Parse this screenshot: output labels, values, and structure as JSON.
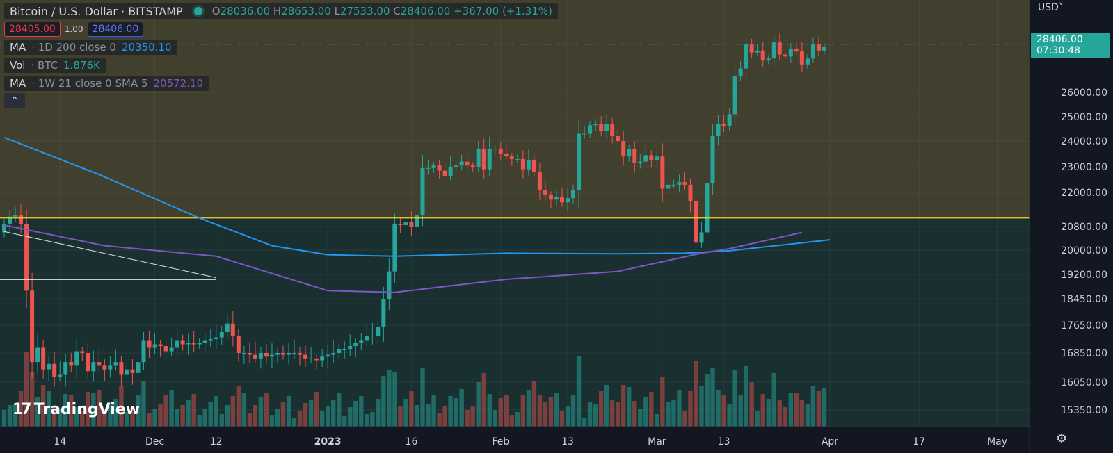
{
  "header": {
    "symbol": "Bitcoin / U.S. Dollar · BITSTAMP",
    "ohlc": {
      "o_label": "O",
      "o": "28036.00",
      "h_label": "H",
      "h": "28653.00",
      "l_label": "L",
      "l": "27533.00",
      "c_label": "C",
      "c": "28406.00",
      "change": "+367.00 (+1.31%)"
    },
    "bid": "28405.00",
    "spread": "1.00",
    "ask": "28406.00"
  },
  "indicators": [
    {
      "name": "MA",
      "params": "· 1D 200 close 0",
      "value": "20350.10",
      "color": "#2196f3"
    },
    {
      "name": "Vol",
      "params": "· BTC",
      "value": "1.876K",
      "color": "#26a69a"
    },
    {
      "name": "MA",
      "params": "· 1W 21 close 0 SMA 5",
      "value": "20572.10",
      "color": "#7e57c2"
    }
  ],
  "collapse_glyph": "⌃",
  "currency": "USD˅",
  "last_price": {
    "price": "28406.00",
    "countdown": "07:30:48"
  },
  "logo_text": "TradingView",
  "logo_mark": "17",
  "settings_glyph": "⚙",
  "colors": {
    "up": "#26a69a",
    "down": "#ef5350",
    "ma200": "#2196f3",
    "ma21w": "#7e57c2",
    "level": "#f5d423",
    "bg": "#131722"
  },
  "chart_data": {
    "type": "candlestick",
    "y_ticks": [
      "26000.00",
      "25000.00",
      "24000.00",
      "23000.00",
      "22000.00",
      "20800.00",
      "20000.00",
      "19200.00",
      "18450.00",
      "17650.00",
      "16850.00",
      "16050.00",
      "15350.00"
    ],
    "y_tick_values": [
      26000,
      25000,
      24000,
      23000,
      22000,
      20800,
      20000,
      19200,
      18450,
      17650,
      16850,
      16050,
      15350
    ],
    "x_ticks": [
      {
        "label": "14",
        "i": 10
      },
      {
        "label": "Dec",
        "i": 27
      },
      {
        "label": "12",
        "i": 38
      },
      {
        "label": "2023",
        "i": 58
      },
      {
        "label": "16",
        "i": 73
      },
      {
        "label": "Feb",
        "i": 89
      },
      {
        "label": "13",
        "i": 101
      },
      {
        "label": "Mar",
        "i": 117
      },
      {
        "label": "13",
        "i": 129
      },
      {
        "label": "Apr",
        "i": 148
      },
      {
        "label": "17",
        "i": 164
      },
      {
        "label": "May",
        "i": 178
      }
    ],
    "horizontal_level": 21100,
    "closes": [
      20900,
      21150,
      21200,
      20900,
      18700,
      16600,
      17000,
      16400,
      16550,
      16200,
      16250,
      16600,
      16500,
      16900,
      16850,
      16350,
      16600,
      16500,
      16400,
      16500,
      16600,
      16250,
      16400,
      16300,
      16600,
      17200,
      17000,
      17100,
      17050,
      16900,
      17000,
      17200,
      17100,
      17150,
      17100,
      17150,
      17200,
      17250,
      17300,
      17450,
      17700,
      17350,
      16850,
      16850,
      16800,
      16700,
      16850,
      16750,
      16800,
      16850,
      16800,
      16850,
      16850,
      16800,
      16700,
      16700,
      16650,
      16750,
      16800,
      16850,
      16950,
      16950,
      17050,
      17150,
      17200,
      17350,
      17350,
      17600,
      18450,
      19300,
      20900,
      20850,
      20950,
      20800,
      21200,
      22950,
      22950,
      23050,
      22850,
      22650,
      23000,
      23050,
      23200,
      23050,
      23000,
      23700,
      22900,
      23700,
      23700,
      23500,
      23400,
      23300,
      23300,
      22900,
      23250,
      22800,
      22100,
      21900,
      21750,
      21850,
      21650,
      21800,
      22100,
      24300,
      24300,
      24650,
      24700,
      24400,
      24700,
      24200,
      24000,
      23400,
      23700,
      23150,
      23200,
      23450,
      23250,
      23400,
      22150,
      22300,
      22300,
      22400,
      22300,
      21700,
      20250,
      20600,
      22350,
      24200,
      24700,
      24600,
      25100,
      26800,
      27200,
      28400,
      28000,
      28100,
      27600,
      27700,
      28500,
      27900,
      27800,
      28200,
      28050,
      27400,
      27700,
      28400,
      28100,
      28300
    ],
    "ma_200d": [
      {
        "x": 0,
        "y": 24150
      },
      {
        "x": 17,
        "y": 22700
      },
      {
        "x": 35,
        "y": 21100
      },
      {
        "x": 48,
        "y": 20150
      },
      {
        "x": 58,
        "y": 19850
      },
      {
        "x": 70,
        "y": 19800
      },
      {
        "x": 90,
        "y": 19900
      },
      {
        "x": 110,
        "y": 19880
      },
      {
        "x": 122,
        "y": 19900
      },
      {
        "x": 130,
        "y": 19980
      },
      {
        "x": 148,
        "y": 20350
      }
    ],
    "ma_21w": [
      {
        "x": 0,
        "y": 20850
      },
      {
        "x": 18,
        "y": 20150
      },
      {
        "x": 38,
        "y": 19800
      },
      {
        "x": 58,
        "y": 18700
      },
      {
        "x": 70,
        "y": 18650
      },
      {
        "x": 90,
        "y": 19050
      },
      {
        "x": 110,
        "y": 19300
      },
      {
        "x": 125,
        "y": 19900
      },
      {
        "x": 130,
        "y": 20050
      },
      {
        "x": 143,
        "y": 20600
      }
    ],
    "trend_line": [
      {
        "x": 0,
        "y": 20630
      },
      {
        "x": 38,
        "y": 19100
      }
    ],
    "support_line": {
      "y": 19050,
      "x_end": 38
    }
  }
}
